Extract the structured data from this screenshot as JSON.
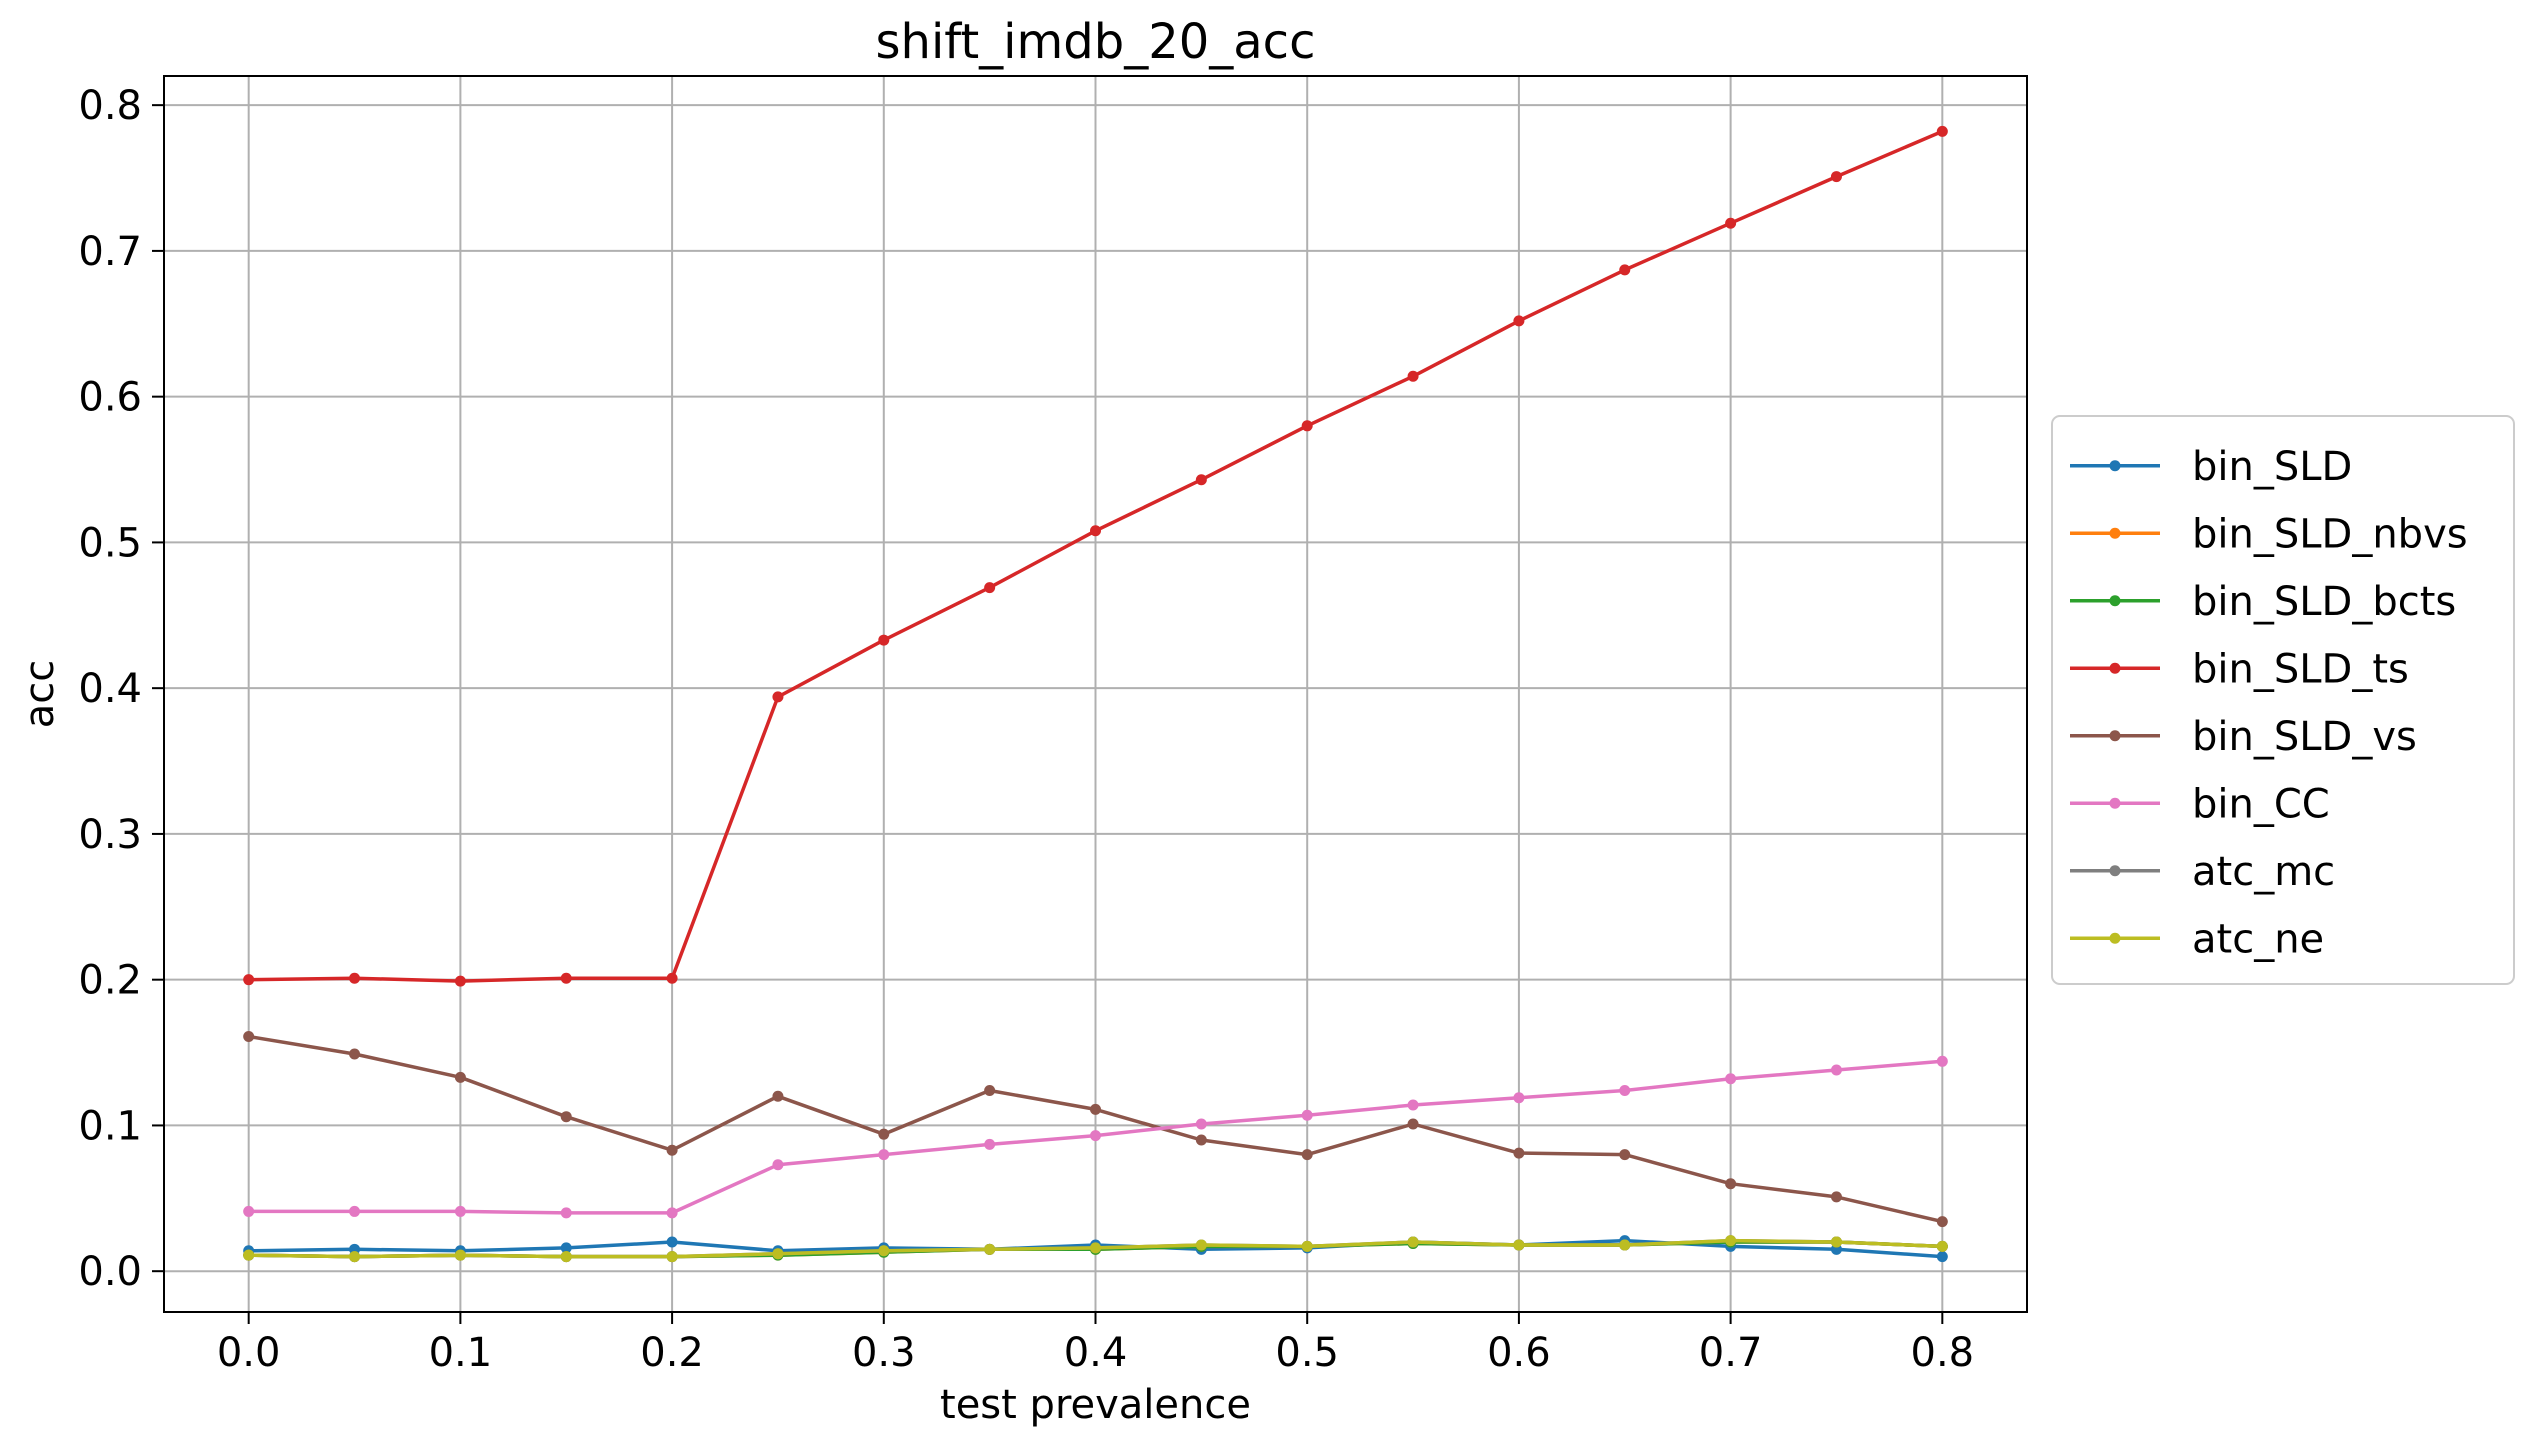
{
  "chart_data": {
    "type": "line",
    "title": "shift_imdb_20_acc",
    "xlabel": "test prevalence",
    "ylabel": "acc",
    "xlim": [
      -0.04,
      0.84
    ],
    "ylim": [
      -0.028,
      0.82
    ],
    "xticks": [
      0.0,
      0.1,
      0.2,
      0.3,
      0.4,
      0.5,
      0.6,
      0.7,
      0.8
    ],
    "xtick_labels": [
      "0.0",
      "0.1",
      "0.2",
      "0.3",
      "0.4",
      "0.5",
      "0.6",
      "0.7",
      "0.8"
    ],
    "yticks": [
      0.0,
      0.1,
      0.2,
      0.3,
      0.4,
      0.5,
      0.6,
      0.7,
      0.8
    ],
    "ytick_labels": [
      "0.0",
      "0.1",
      "0.2",
      "0.3",
      "0.4",
      "0.5",
      "0.6",
      "0.7",
      "0.8"
    ],
    "grid": true,
    "legend_position": "right, outside plot",
    "x": [
      0.0,
      0.05,
      0.1,
      0.15,
      0.2,
      0.25,
      0.3,
      0.35,
      0.4,
      0.45,
      0.5,
      0.55,
      0.6,
      0.65,
      0.7,
      0.75,
      0.8
    ],
    "series": [
      {
        "name": "bin_SLD",
        "color": "#1f77b4",
        "values": [
          0.014,
          0.015,
          0.014,
          0.016,
          0.02,
          0.014,
          0.016,
          0.015,
          0.018,
          0.015,
          0.016,
          0.02,
          0.018,
          0.021,
          0.017,
          0.015,
          0.01
        ]
      },
      {
        "name": "bin_SLD_nbvs",
        "color": "#ff7f0e",
        "values": [
          0.011,
          0.01,
          0.011,
          0.01,
          0.01,
          0.011,
          0.013,
          0.015,
          0.015,
          0.017,
          0.017,
          0.019,
          0.018,
          0.018,
          0.02,
          0.02,
          0.017
        ]
      },
      {
        "name": "bin_SLD_bcts",
        "color": "#2ca02c",
        "values": [
          0.011,
          0.01,
          0.011,
          0.01,
          0.01,
          0.011,
          0.013,
          0.015,
          0.015,
          0.017,
          0.017,
          0.019,
          0.018,
          0.018,
          0.02,
          0.02,
          0.017
        ]
      },
      {
        "name": "bin_SLD_ts",
        "color": "#d62728",
        "values": [
          0.2,
          0.201,
          0.199,
          0.201,
          0.201,
          0.394,
          0.433,
          0.469,
          0.508,
          0.543,
          0.58,
          0.614,
          0.652,
          0.687,
          0.719,
          0.751,
          0.782
        ]
      },
      {
        "name": "bin_SLD_vs",
        "color": "#8c564b",
        "values": [
          0.161,
          0.149,
          0.133,
          0.106,
          0.083,
          0.12,
          0.094,
          0.124,
          0.111,
          0.09,
          0.08,
          0.101,
          0.081,
          0.08,
          0.06,
          0.051,
          0.034
        ]
      },
      {
        "name": "bin_CC",
        "color": "#e377c2",
        "values": [
          0.041,
          0.041,
          0.041,
          0.04,
          0.04,
          0.073,
          0.08,
          0.087,
          0.093,
          0.101,
          0.107,
          0.114,
          0.119,
          0.124,
          0.132,
          0.138,
          0.144
        ]
      },
      {
        "name": "atc_mc",
        "color": "#7f7f7f",
        "values": [
          0.011,
          0.01,
          0.011,
          0.01,
          0.01,
          0.012,
          0.014,
          0.015,
          0.016,
          0.018,
          0.017,
          0.02,
          0.018,
          0.018,
          0.021,
          0.02,
          0.017
        ]
      },
      {
        "name": "atc_ne",
        "color": "#bcbd22",
        "values": [
          0.011,
          0.01,
          0.011,
          0.01,
          0.01,
          0.012,
          0.014,
          0.015,
          0.016,
          0.018,
          0.017,
          0.02,
          0.018,
          0.018,
          0.021,
          0.02,
          0.017
        ]
      }
    ]
  }
}
